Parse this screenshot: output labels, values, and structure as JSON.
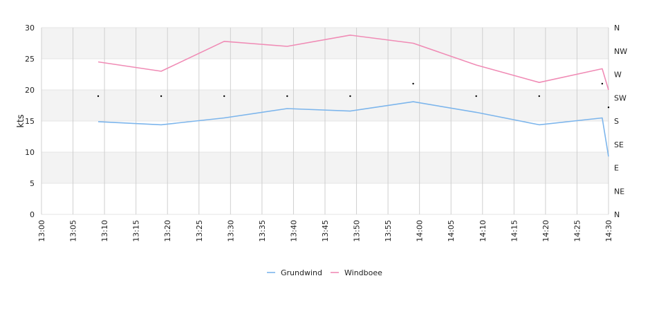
{
  "chart_data": {
    "type": "line",
    "ylabel": "kts",
    "ylim": [
      0,
      30
    ],
    "y_ticks": [
      "0",
      "5",
      "10",
      "15",
      "20",
      "25",
      "30"
    ],
    "x_ticks": [
      "13:00",
      "13:05",
      "13:10",
      "13:15",
      "13:20",
      "13:25",
      "13:30",
      "13:35",
      "13:40",
      "13:45",
      "13:50",
      "13:55",
      "14:00",
      "14:05",
      "14:10",
      "14:15",
      "14:20",
      "14:25",
      "14:30"
    ],
    "xlim": [
      "13:00",
      "14:30"
    ],
    "direction_ticks": [
      "N",
      "NW",
      "W",
      "SW",
      "S",
      "SE",
      "E",
      "NE",
      "N"
    ],
    "grid": true,
    "alternating_bands": true,
    "legend_position": "bottom-center",
    "x": [
      "13:09",
      "13:19",
      "13:29",
      "13:39",
      "13:49",
      "13:59",
      "14:09",
      "14:19",
      "14:29",
      "14:30"
    ],
    "series": [
      {
        "name": "Grundwind",
        "color": "#7cb5ec",
        "values": [
          14.9,
          14.4,
          15.5,
          17.0,
          16.6,
          18.1,
          16.4,
          14.4,
          15.5,
          9.3
        ]
      },
      {
        "name": "Windboee",
        "color": "#f08bb5",
        "values": [
          24.5,
          23.0,
          27.8,
          27.0,
          28.8,
          27.5,
          24.0,
          21.2,
          23.4,
          20.0
        ]
      }
    ],
    "direction_series": {
      "x": [
        "13:09",
        "13:19",
        "13:29",
        "13:39",
        "13:49",
        "13:59",
        "14:09",
        "14:19",
        "14:29",
        "14:30"
      ],
      "values": [
        19,
        19,
        19,
        19,
        19,
        21,
        19,
        19,
        21,
        17.2
      ]
    }
  }
}
